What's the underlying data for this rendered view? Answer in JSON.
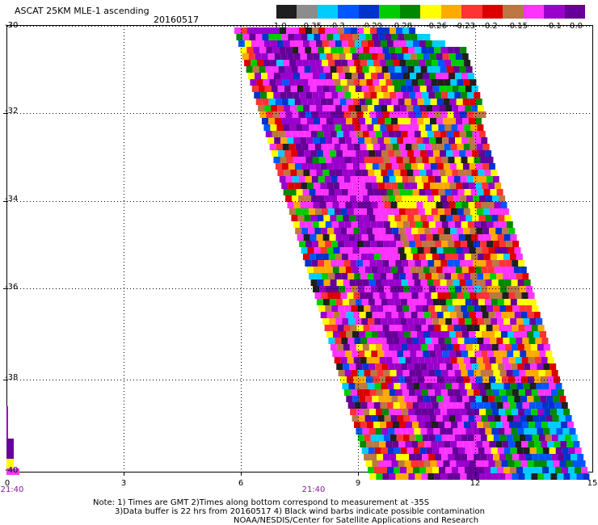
{
  "title": "ASCAT 25KM MLE-1 ascending",
  "date": "20160517",
  "colorbar": {
    "colors": [
      "#1f1f1f",
      "#8c8c8c",
      "#00ccff",
      "#0055ff",
      "#0033cc",
      "#00cc00",
      "#008800",
      "#ffff00",
      "#ffaa00",
      "#ff3333",
      "#dd0000",
      "#bb7744",
      "#ff33ff",
      "#9900cc",
      "#660099"
    ],
    "labels": [
      "-1.0",
      "-0.35",
      "-0.3",
      "-0.29",
      "-0.28",
      "-0.26",
      "-0.23",
      "-0.2",
      "-0.15",
      "-0.1",
      "0.0"
    ]
  },
  "axes": {
    "y_ticks": [
      "-30",
      "-32",
      "-34",
      "-36",
      "-38",
      "-40"
    ],
    "x_ticks": [
      "0",
      "3",
      "6",
      "9",
      "12",
      "15"
    ],
    "time_labels": [
      "21:40",
      "21:40"
    ]
  },
  "notes": {
    "line1": "Note: 1) Times are GMT 2)Times along bottom correspond to measurement at -35S",
    "line2": "3)Data buffer is 22 hrs from 20160517 4) Black wind barbs indicate possible contamination",
    "line3": "NOAA/NESDIS/Center for Satellite Applications and Research"
  }
}
